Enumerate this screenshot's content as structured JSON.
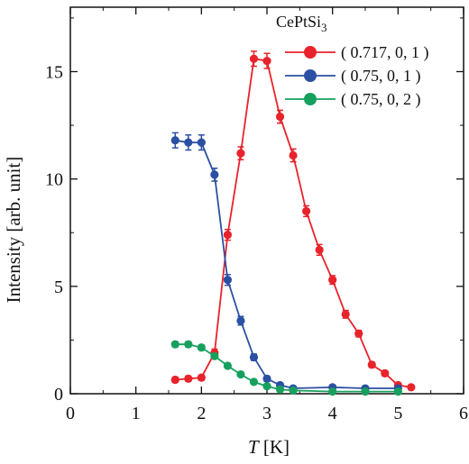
{
  "chart_data": {
    "type": "line",
    "xlabel_italic": "T",
    "xlabel_unit": " [K]",
    "ylabel": "Intensity [arb. unit]",
    "xlim": [
      0,
      6
    ],
    "ylim": [
      0,
      18
    ],
    "x_ticks": [
      "0",
      "1",
      "2",
      "3",
      "4",
      "5",
      "6"
    ],
    "y_ticks": [
      "0",
      "5",
      "10",
      "15"
    ],
    "grid": false,
    "legend_position": "top-right",
    "legend_title": "CePtSi",
    "legend_title_sub": "3",
    "series": [
      {
        "name": "( 0.717, 0, 1 )",
        "color": "#e8232b",
        "x": [
          1.6,
          1.8,
          2.0,
          2.2,
          2.4,
          2.6,
          2.8,
          3.0,
          3.2,
          3.4,
          3.6,
          3.8,
          4.0,
          4.2,
          4.4,
          4.6,
          4.8,
          5.0,
          5.2
        ],
        "y": [
          0.65,
          0.7,
          0.75,
          1.9,
          7.4,
          11.2,
          15.6,
          15.5,
          12.9,
          11.1,
          8.5,
          6.7,
          5.3,
          3.7,
          2.8,
          1.35,
          0.95,
          0.4,
          0.3
        ],
        "err": [
          0.12,
          0.12,
          0.12,
          0.18,
          0.25,
          0.3,
          0.35,
          0.35,
          0.3,
          0.3,
          0.25,
          0.25,
          0.2,
          0.18,
          0.15,
          0.12,
          0.12,
          0.1,
          0.1
        ]
      },
      {
        "name": "( 0.75, 0, 1 )",
        "color": "#2b4fa3",
        "x": [
          1.6,
          1.8,
          2.0,
          2.2,
          2.4,
          2.6,
          2.8,
          3.0,
          3.2,
          3.4,
          4.0,
          4.5,
          5.0
        ],
        "y": [
          11.8,
          11.7,
          11.7,
          10.2,
          5.3,
          3.4,
          1.7,
          0.7,
          0.4,
          0.25,
          0.3,
          0.25,
          0.25
        ],
        "err": [
          0.35,
          0.35,
          0.35,
          0.3,
          0.25,
          0.2,
          0.15,
          0.12,
          0.1,
          0.1,
          0.1,
          0.1,
          0.1
        ]
      },
      {
        "name": "( 0.75, 0, 2 )",
        "color": "#17a05d",
        "x": [
          1.6,
          1.8,
          2.0,
          2.2,
          2.4,
          2.6,
          2.8,
          3.0,
          3.2,
          3.4,
          4.0,
          4.5,
          5.0
        ],
        "y": [
          2.3,
          2.3,
          2.15,
          1.75,
          1.3,
          0.9,
          0.55,
          0.35,
          0.2,
          0.15,
          0.1,
          0.1,
          0.1
        ],
        "err": [
          0.12,
          0.12,
          0.12,
          0.1,
          0.1,
          0.08,
          0.08,
          0.06,
          0.06,
          0.05,
          0.05,
          0.05,
          0.05
        ]
      }
    ]
  }
}
